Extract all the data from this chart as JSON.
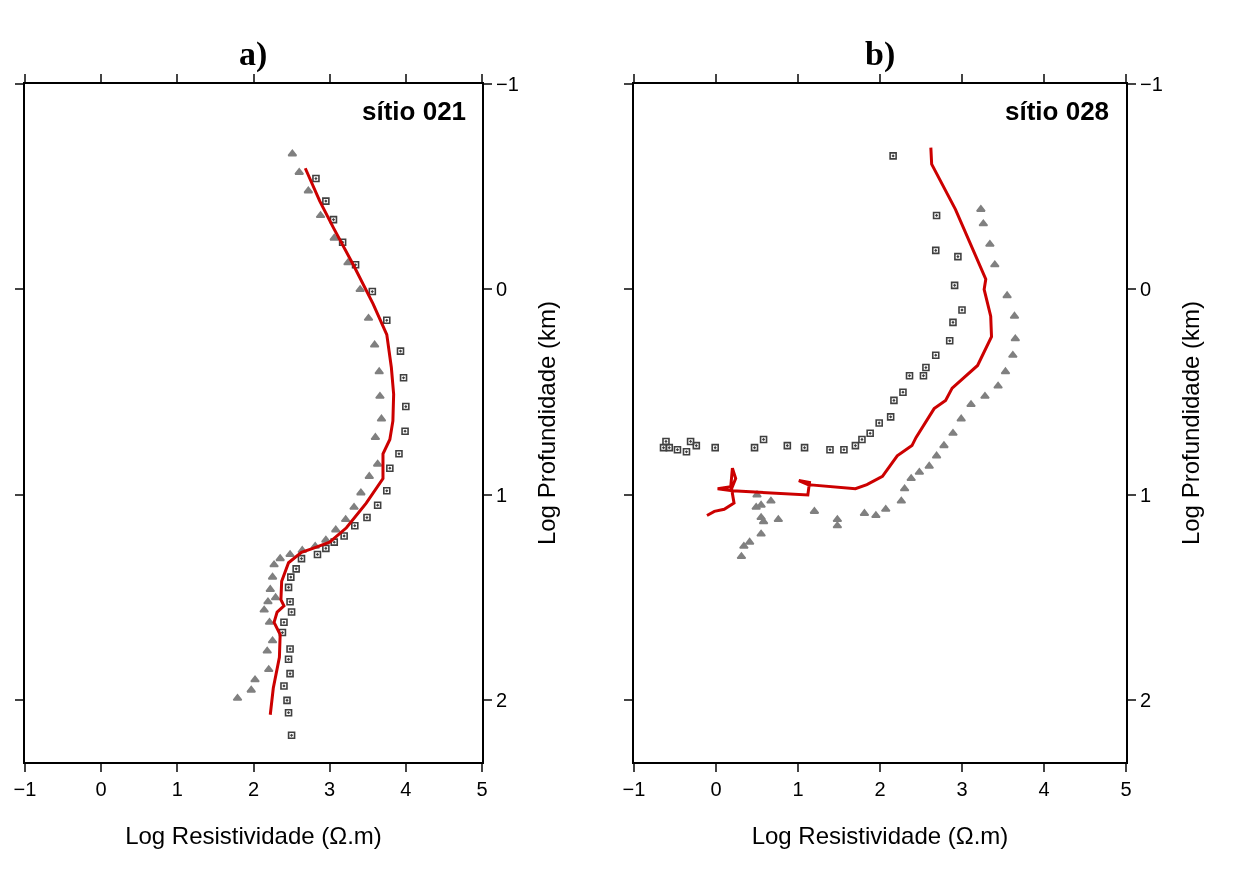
{
  "chart_data": [
    {
      "type": "scatter",
      "title": "a)",
      "xlabel": "Log Resistividade (Ω.m)",
      "ylabel": "Log Profundidade (km)",
      "annotations": [
        "sítio 021"
      ],
      "xlim": [
        -1,
        5
      ],
      "xticks": [
        -1,
        0,
        1,
        2,
        3,
        4,
        5
      ],
      "ylim": [
        2.3,
        -1
      ],
      "yticks": [
        -1,
        0,
        1,
        2
      ],
      "series": [
        {
          "marker": "triangle",
          "color": "#808080",
          "x": [
            2.51,
            2.6,
            2.72,
            2.88,
            3.06,
            3.24,
            3.4,
            3.51,
            3.59,
            3.65,
            3.66,
            3.68,
            3.6,
            3.63,
            3.52,
            3.41,
            3.32,
            3.21,
            3.08,
            2.95,
            2.81,
            2.64,
            2.48,
            2.35,
            2.27,
            2.25,
            2.22,
            2.29,
            2.19,
            2.14,
            2.21,
            2.25,
            2.18,
            2.2,
            2.02,
            1.97,
            1.79
          ],
          "values": [
            -0.66,
            -0.57,
            -0.48,
            -0.36,
            -0.25,
            -0.13,
            0.0,
            0.14,
            0.27,
            0.4,
            0.52,
            0.63,
            0.72,
            0.85,
            0.91,
            0.99,
            1.06,
            1.12,
            1.17,
            1.22,
            1.25,
            1.27,
            1.29,
            1.31,
            1.34,
            1.4,
            1.46,
            1.5,
            1.52,
            1.56,
            1.62,
            1.71,
            1.76,
            1.85,
            1.9,
            1.95,
            1.99
          ]
        },
        {
          "marker": "square",
          "color": "#404040",
          "x": [
            2.82,
            2.95,
            3.05,
            3.17,
            3.34,
            3.56,
            3.75,
            3.93,
            3.97,
            4.0,
            3.99,
            3.91,
            3.79,
            3.75,
            3.63,
            3.49,
            3.33,
            3.19,
            3.06,
            2.95,
            2.84,
            2.63,
            2.56,
            2.49,
            2.46,
            2.48,
            2.5,
            2.4,
            2.38,
            2.48,
            2.46,
            2.48,
            2.4,
            2.44,
            2.46,
            2.5
          ],
          "values": [
            -0.54,
            -0.43,
            -0.34,
            -0.23,
            -0.12,
            0.01,
            0.15,
            0.3,
            0.43,
            0.57,
            0.69,
            0.8,
            0.87,
            0.98,
            1.05,
            1.11,
            1.15,
            1.2,
            1.23,
            1.26,
            1.29,
            1.31,
            1.36,
            1.4,
            1.45,
            1.52,
            1.57,
            1.62,
            1.67,
            1.75,
            1.8,
            1.87,
            1.93,
            2.0,
            2.06,
            2.17
          ]
        },
        {
          "type": "line",
          "marker": "none",
          "color": "#cc0000",
          "x": [
            2.68,
            2.87,
            3.05,
            3.31,
            3.57,
            3.75,
            3.81,
            3.84,
            3.83,
            3.79,
            3.7,
            3.7,
            3.48,
            3.22,
            3.0,
            2.78,
            2.63,
            2.46,
            2.37,
            2.36,
            2.4,
            2.31,
            2.27,
            2.35,
            2.34,
            2.26,
            2.22
          ],
          "values": [
            -0.59,
            -0.43,
            -0.3,
            -0.12,
            0.07,
            0.22,
            0.38,
            0.51,
            0.64,
            0.73,
            0.8,
            0.92,
            1.04,
            1.16,
            1.23,
            1.26,
            1.28,
            1.33,
            1.42,
            1.51,
            1.54,
            1.57,
            1.62,
            1.68,
            1.79,
            1.94,
            2.07
          ]
        }
      ]
    },
    {
      "type": "scatter",
      "title": "b)",
      "xlabel": "Log Resistividade (Ω.m)",
      "ylabel": "Log Profundidade (km)",
      "annotations": [
        "sítio 028"
      ],
      "xlim": [
        -1,
        5
      ],
      "xticks": [
        -1,
        0,
        1,
        2,
        3,
        4,
        5
      ],
      "ylim": [
        2.3,
        -1
      ],
      "yticks": [
        -1,
        0,
        1,
        2
      ],
      "series": [
        {
          "marker": "triangle",
          "color": "#808080",
          "x": [
            3.23,
            3.26,
            3.34,
            3.4,
            3.55,
            3.64,
            3.65,
            3.62,
            3.53,
            3.44,
            3.28,
            3.11,
            2.99,
            2.89,
            2.78,
            2.69,
            2.6,
            2.48,
            2.38,
            2.3,
            2.26,
            2.07,
            1.95,
            1.81,
            1.48,
            1.48,
            1.2,
            0.76,
            0.67,
            0.55,
            0.49,
            0.5,
            0.55,
            0.58,
            0.55,
            0.41,
            0.34,
            0.31
          ],
          "values": [
            -0.39,
            -0.32,
            -0.22,
            -0.12,
            0.03,
            0.13,
            0.24,
            0.32,
            0.4,
            0.47,
            0.52,
            0.56,
            0.63,
            0.7,
            0.76,
            0.81,
            0.86,
            0.89,
            0.92,
            0.97,
            1.03,
            1.07,
            1.1,
            1.09,
            1.12,
            1.15,
            1.08,
            1.12,
            1.03,
            1.05,
            1.06,
            1.0,
            1.11,
            1.13,
            1.19,
            1.23,
            1.25,
            1.3
          ]
        },
        {
          "marker": "square",
          "color": "#404040",
          "x": [
            2.16,
            2.69,
            2.68,
            2.95,
            2.91,
            3.0,
            2.89,
            2.85,
            2.68,
            2.56,
            2.53,
            2.36,
            2.28,
            2.17,
            2.13,
            1.99,
            1.88,
            1.78,
            1.7,
            1.56,
            1.39,
            1.08,
            0.87,
            0.58,
            0.47,
            -0.01,
            -0.24,
            -0.31,
            -0.36,
            -0.47,
            -0.57,
            -0.61,
            -0.64
          ],
          "values": [
            -0.65,
            -0.36,
            -0.19,
            -0.16,
            -0.02,
            0.1,
            0.16,
            0.25,
            0.32,
            0.38,
            0.42,
            0.42,
            0.5,
            0.54,
            0.62,
            0.65,
            0.7,
            0.73,
            0.76,
            0.78,
            0.78,
            0.77,
            0.76,
            0.73,
            0.77,
            0.77,
            0.76,
            0.74,
            0.79,
            0.78,
            0.77,
            0.74,
            0.77
          ]
        },
        {
          "type": "line",
          "marker": "none",
          "color": "#cc0000",
          "x": [
            2.62,
            2.63,
            2.92,
            3.29,
            3.27,
            3.35,
            3.36,
            3.19,
            2.88,
            2.8,
            2.66,
            2.44,
            2.39,
            2.21,
            2.03,
            1.84,
            1.7,
            1.12,
            1.01,
            1.14,
            1.12,
            0.2,
            0.02,
            0.18,
            0.2,
            0.24,
            0.19,
            0.22,
            0.1,
            -0.02,
            -0.11
          ],
          "values": [
            -0.69,
            -0.61,
            -0.39,
            -0.05,
            0.0,
            0.13,
            0.23,
            0.37,
            0.48,
            0.54,
            0.58,
            0.72,
            0.76,
            0.81,
            0.91,
            0.95,
            0.97,
            0.95,
            0.93,
            0.94,
            1.0,
            0.98,
            0.97,
            0.96,
            0.87,
            0.92,
            0.97,
            1.04,
            1.07,
            1.08,
            1.1
          ]
        }
      ]
    }
  ]
}
